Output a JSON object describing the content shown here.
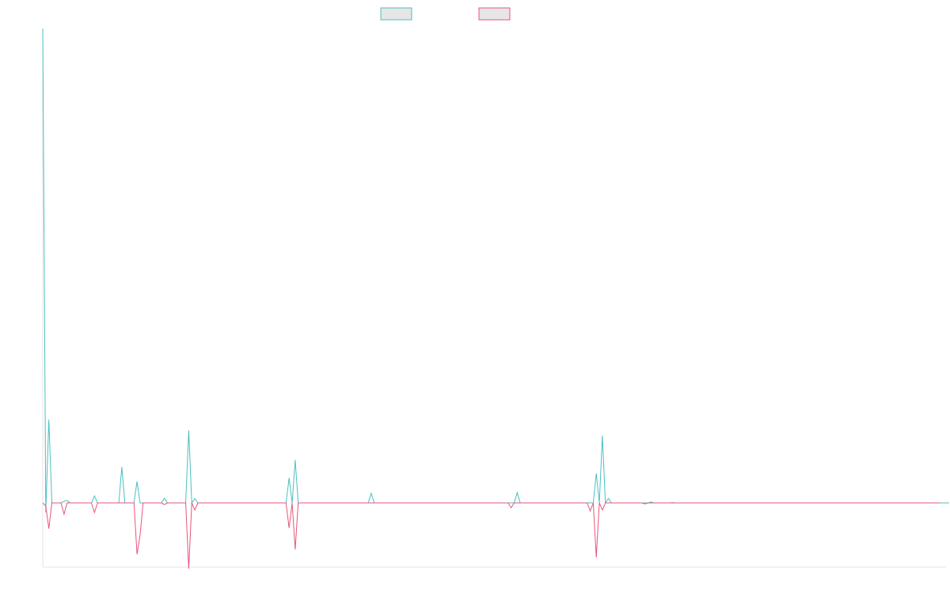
{
  "chart_data": {
    "type": "line",
    "title": "",
    "xlabel": "",
    "ylabel": "",
    "grid": false,
    "legend_position": "top-center",
    "series": [
      {
        "name": "",
        "color": "#4BC0C0",
        "fill": "#E6E6E6",
        "values": [
          148,
          -3,
          26,
          0,
          0,
          0,
          0,
          0.5,
          0.8,
          0,
          0,
          0,
          0,
          0,
          0,
          0,
          0,
          2.2,
          0,
          0,
          0,
          0,
          0,
          0,
          0,
          0,
          11.2,
          0,
          0,
          0,
          0,
          6.7,
          0,
          0,
          0,
          0,
          0,
          0,
          0,
          0,
          1.5,
          0,
          0,
          0,
          0,
          0,
          0,
          0,
          22.6,
          0,
          1.4,
          0,
          0,
          0,
          0,
          0,
          0,
          0,
          0,
          0,
          0,
          0,
          0,
          0,
          0,
          0,
          0,
          0,
          0,
          0,
          0,
          0,
          0,
          0,
          0,
          0,
          0,
          0,
          0,
          0,
          0,
          7.8,
          0,
          13.4,
          0,
          0,
          0,
          0,
          0,
          0,
          0,
          0,
          0,
          0,
          0,
          0,
          0,
          0,
          0,
          0,
          0,
          0,
          0,
          0,
          0,
          0,
          0,
          0,
          3,
          0,
          0,
          0,
          0,
          0,
          0,
          0,
          0,
          0,
          0,
          0,
          0,
          0,
          0,
          0,
          0,
          0,
          0,
          0,
          0,
          0,
          0,
          0,
          0,
          0,
          0,
          0,
          0,
          0,
          0,
          0,
          0,
          0,
          0,
          0,
          0,
          0,
          0,
          0,
          0,
          0,
          0,
          0,
          0,
          0,
          0,
          0,
          3.2,
          0,
          0,
          0,
          0,
          0,
          0,
          0,
          0,
          0,
          0,
          0,
          0,
          0,
          0,
          0,
          0,
          0,
          0,
          0,
          0,
          0,
          0,
          0,
          0,
          0,
          9.2,
          0,
          21,
          0,
          1.4,
          0,
          0,
          0,
          0,
          0,
          0,
          0,
          0,
          0,
          0,
          0,
          0,
          0,
          0.3,
          0,
          0,
          0,
          0,
          0,
          0,
          0.1,
          0,
          0,
          0,
          0,
          0,
          0,
          0,
          0,
          0,
          0,
          0,
          0,
          0,
          0,
          0,
          0,
          0,
          0,
          0,
          0,
          0,
          0,
          0,
          0,
          0,
          0,
          0,
          0,
          0,
          0,
          0,
          0,
          0,
          0,
          0,
          0,
          0,
          0,
          0,
          0,
          0,
          0,
          0,
          0,
          0,
          0,
          0,
          0,
          0,
          0,
          0,
          0,
          0,
          0,
          0,
          0,
          0,
          0,
          0,
          0,
          0,
          0,
          0,
          0,
          0,
          0,
          0,
          0,
          0,
          0,
          0,
          0,
          0,
          0,
          0,
          0,
          0,
          0,
          0,
          0,
          0,
          0,
          0,
          0,
          0,
          0,
          0,
          0,
          0,
          0,
          0
        ]
      },
      {
        "name": "",
        "color": "#E8557A",
        "fill": "#E6E6E6",
        "values": [
          0,
          -1,
          -8,
          0,
          0,
          0,
          0,
          -3.5,
          0,
          0,
          0,
          0,
          0,
          0,
          0,
          0,
          0,
          -3,
          0,
          0,
          0,
          0,
          0,
          0,
          0,
          0,
          0,
          0,
          0,
          0,
          0,
          -16,
          -10,
          0,
          0,
          0,
          0,
          0,
          0,
          0,
          -0.5,
          0,
          0,
          0,
          0,
          0,
          0,
          0,
          -20.5,
          0,
          -2.2,
          0,
          0,
          0,
          0,
          0,
          0,
          0,
          0,
          0,
          0,
          0,
          0,
          0,
          0,
          0,
          0,
          0,
          0,
          0,
          0,
          0,
          0,
          0,
          0,
          0,
          0,
          0,
          0,
          0,
          0,
          -7.8,
          0,
          -14.5,
          0,
          0,
          0,
          0,
          0,
          0,
          0,
          0,
          0,
          0,
          0,
          0,
          0,
          0,
          0,
          0,
          0,
          0,
          0,
          0,
          0,
          0,
          0,
          0,
          0,
          0,
          0,
          0,
          0,
          0,
          0,
          0,
          0,
          0,
          0,
          0,
          0,
          0,
          0,
          0,
          0,
          0,
          0,
          0,
          0,
          0,
          0,
          0,
          0,
          0,
          0,
          0,
          0,
          0,
          0,
          0,
          0,
          0,
          0,
          0,
          0,
          0,
          0,
          0,
          0,
          0,
          0,
          0,
          0,
          0,
          -1.5,
          0,
          0,
          0,
          0,
          0,
          0,
          0,
          0,
          0,
          0,
          0,
          0,
          0,
          0,
          0,
          0,
          0,
          0,
          0,
          0,
          0,
          0,
          0,
          0,
          0,
          -2.5,
          0,
          -17,
          0,
          -2.2,
          0,
          0,
          0,
          0,
          0,
          0,
          0,
          0,
          0,
          0,
          0,
          0,
          0,
          -0.3,
          0,
          0,
          0,
          0,
          0,
          0,
          0,
          0,
          0,
          0,
          0,
          0,
          0,
          0,
          0,
          0,
          0,
          0,
          0,
          0,
          0,
          0,
          0,
          0,
          0,
          0,
          0,
          0,
          0,
          0,
          0,
          0,
          0,
          0,
          0,
          0,
          0,
          0,
          0,
          0,
          0,
          0,
          0,
          0,
          0,
          0,
          0,
          0,
          0,
          0,
          0,
          0,
          0,
          0,
          0,
          0,
          0,
          0,
          0,
          0,
          0,
          0,
          0,
          0,
          0,
          0,
          0,
          0,
          0,
          0,
          0,
          0,
          0,
          0,
          0,
          0,
          0,
          0,
          0,
          0,
          0,
          0,
          0,
          0,
          0,
          0,
          0,
          0,
          0,
          0,
          0,
          0,
          0,
          0,
          0,
          0,
          0
        ]
      }
    ],
    "ylim": [
      -20,
      148
    ],
    "xlim": [
      0,
      297
    ]
  }
}
